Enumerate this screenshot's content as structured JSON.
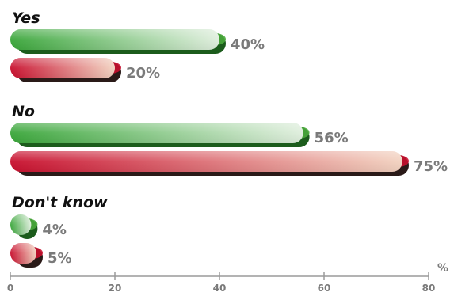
{
  "chart_data": {
    "type": "bar",
    "orientation": "horizontal",
    "categories": [
      "Yes",
      "No",
      "Don't know"
    ],
    "series": [
      {
        "values": [
          40,
          56,
          4
        ],
        "labels": [
          "40%",
          "56%",
          "4%"
        ],
        "color_from": "#3aa63a",
        "color_to": "#dfeedd",
        "shadow": "#1c5c1c",
        "rim": "#4aa83c"
      },
      {
        "values": [
          20,
          75,
          5
        ],
        "labels": [
          "20%",
          "75%",
          "5%"
        ],
        "color_from": "#c8102e",
        "color_to": "#f2d2c0",
        "shadow": "#2a1a18",
        "rim": "#c8102e"
      }
    ],
    "xlim": [
      0,
      80
    ],
    "xticks": [
      0,
      20,
      40,
      60,
      80
    ],
    "xtick_labels": [
      "0",
      "20",
      "40",
      "60",
      "80"
    ],
    "unit_label": "%",
    "grid": false,
    "legend": "none"
  }
}
